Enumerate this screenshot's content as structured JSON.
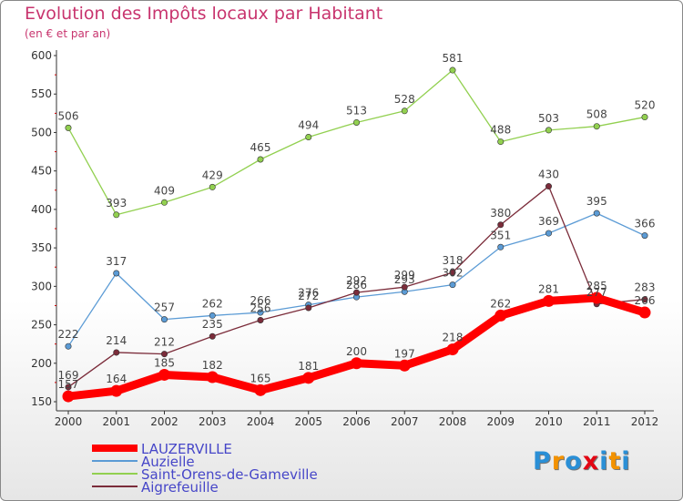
{
  "title": "Evolution des Impôts locaux par Habitant",
  "subtitle": "(en € et par an)",
  "brand": {
    "text": "Proxiti",
    "letters": [
      "P",
      "r",
      "o",
      "x",
      "i",
      "t",
      "i"
    ],
    "colors": [
      "#2a8fd6",
      "#f39200",
      "#2a8fd6",
      "#e30613",
      "#2a8fd6",
      "#f39200",
      "#2a8fd6"
    ]
  },
  "chart_data": {
    "type": "line",
    "title": "Evolution des Impôts locaux par Habitant",
    "subtitle": "(en € et par an)",
    "categories": [
      "2000",
      "2001",
      "2002",
      "2003",
      "2004",
      "2005",
      "2006",
      "2007",
      "2008",
      "2009",
      "2010",
      "2011",
      "2012"
    ],
    "ylim": [
      150,
      600
    ],
    "yticks": [
      150,
      200,
      250,
      300,
      350,
      400,
      450,
      500,
      550,
      600
    ],
    "grid": false,
    "legend_position": "bottom-left",
    "series": [
      {
        "name": "LAUZERVILLE",
        "color": "#ff0000",
        "width": 9,
        "values": [
          157,
          164,
          185,
          182,
          165,
          181,
          200,
          197,
          218,
          262,
          281,
          285,
          266
        ]
      },
      {
        "name": "Auzielle",
        "color": "#5b9bd5",
        "width": 1.3,
        "values": [
          222,
          317,
          257,
          262,
          266,
          276,
          286,
          293,
          302,
          351,
          369,
          395,
          366
        ]
      },
      {
        "name": "Saint-Orens-de-Gameville",
        "color": "#92d050",
        "width": 1.3,
        "values": [
          506,
          393,
          409,
          429,
          465,
          494,
          513,
          528,
          581,
          488,
          503,
          508,
          520
        ]
      },
      {
        "name": "Aigrefeuille",
        "color": "#7b2c3a",
        "width": 1.3,
        "values": [
          169,
          214,
          212,
          235,
          256,
          272,
          292,
          299,
          318,
          380,
          430,
          277,
          283
        ]
      }
    ]
  }
}
